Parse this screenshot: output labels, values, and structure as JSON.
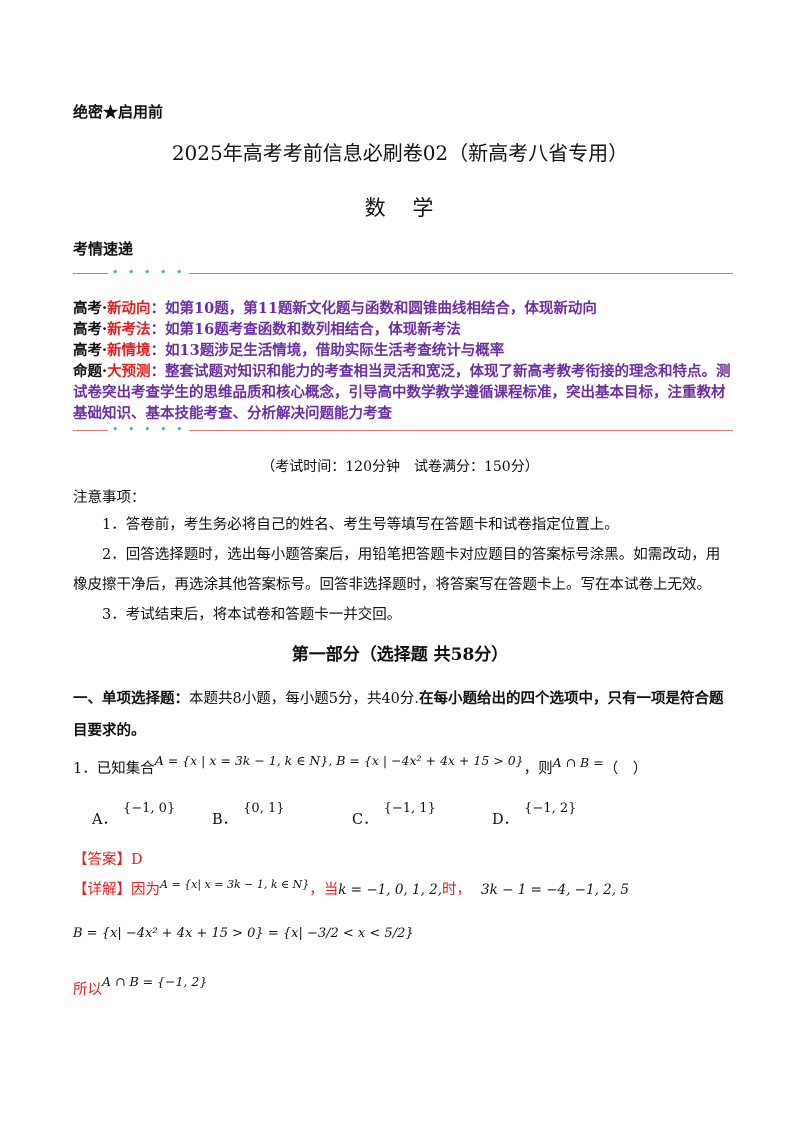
{
  "header": {
    "secret": "绝密★启用前",
    "title": "2025年高考考前信息必刷卷02（新高考八省专用）",
    "subject": "数 学",
    "kaoqing": "考情速递",
    "dots": "• • • • •"
  },
  "info": [
    {
      "label": "高考·",
      "tag": "新动向",
      "text": "：如第10题，第11题新文化题与函数和圆锥曲线相结合，体现新动向"
    },
    {
      "label": "高考·",
      "tag": "新考法",
      "text": "：如第16题考查函数和数列相结合，体现新考法"
    },
    {
      "label": "高考·",
      "tag": "新情境",
      "text": "：如13题涉足生活情境，借助实际生活考查统计与概率"
    },
    {
      "label": "命题·",
      "tag": "大预测",
      "text": "：整套试题对知识和能力的考查相当灵活和宽泛，体现了新高考教考衔接的理念和特点。测试卷突出考查学生的思维品质和核心概念，引导高中数学教学遵循课程标准，突出基本目标，注重教材基础知识、基本技能考查、分析解决问题能力考查"
    }
  ],
  "exam_time": "（考试时间：120分钟　试卷满分：150分）",
  "notes": {
    "heading": "注意事项：",
    "items": [
      "1．答卷前，考生务必将自己的姓名、考生号等填写在答题卡和试卷指定位置上。",
      "2．回答选择题时，选出每小题答案后，用铅笔把答题卡对应题目的答案标号涂黑。如需改动，用橡皮擦干净后，再选涂其他答案标号。回答非选择题时，将答案写在答题卡上。写在本试卷上无效。",
      "3．考试结束后，将本试卷和答题卡一并交回。"
    ]
  },
  "part_title": "第一部分（选择题 共58分）",
  "section": {
    "bold_start": "一、单项选择题：",
    "plain": "本题共8小题，每小题5分，共40分.",
    "bold_end": "在每小题给出的四个选项中，只有一项是符合题目要求的。"
  },
  "question": {
    "prefix": "1．已知集合",
    "math_a": "A = {x | x = 3k − 1, k ∈ N}, B = {x | −4x² + 4x + 15 > 0}",
    "suffix": "，则",
    "math_b": "A ∩ B =",
    "paren": "（　）",
    "options": [
      {
        "letter": "A．",
        "value": "{−1, 0}"
      },
      {
        "letter": "B．",
        "value": "{0, 1}"
      },
      {
        "letter": "C．",
        "value": "{−1, 1}"
      },
      {
        "letter": "D．",
        "value": "{−1, 2}"
      }
    ]
  },
  "answer": {
    "label": "【答案】",
    "value": "D"
  },
  "detail": {
    "label": "【详解】",
    "t1": "因为",
    "m1": "A = {x| x = 3k − 1, k ∈ N}",
    "t2": "，当",
    "m2": "k = −1, 0, 1, 2,",
    "t3": "时，",
    "m3": "3k − 1 = −4, −1, 2, 5",
    "bset": "B = {x| −4x² + 4x + 15 > 0} = {x| −3/2 < x < 5/2}",
    "so": "所以",
    "result": "A ∩ B = {−1, 2}"
  },
  "colors": {
    "accent_red": "#e02020",
    "accent_purple": "#6b2fa3",
    "rule": "#d97a6a",
    "dots": "#3aaedc"
  }
}
